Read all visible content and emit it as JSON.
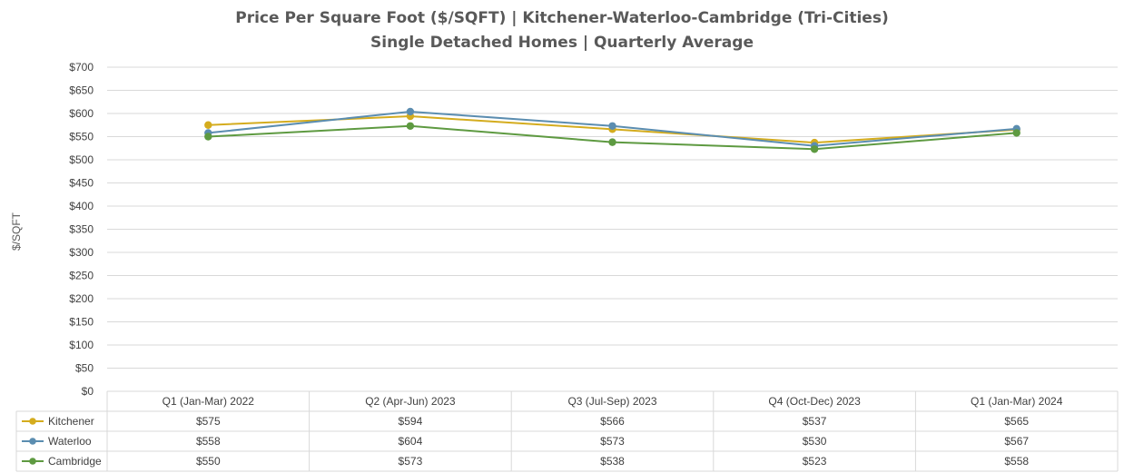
{
  "chart_data": {
    "type": "line",
    "title": "Price Per Square Foot ($/SQFT) | Kitchener-Waterloo-Cambridge (Tri-Cities)",
    "subtitle": "Single Detached Homes | Quarterly Average",
    "ylabel": "$/SQFT",
    "xlabel": "",
    "ylim": [
      0,
      700
    ],
    "ytick_step": 50,
    "ytick_labels": [
      "$0",
      "$50",
      "$100",
      "$150",
      "$200",
      "$250",
      "$300",
      "$350",
      "$400",
      "$450",
      "$500",
      "$550",
      "$600",
      "$650",
      "$700"
    ],
    "grid": true,
    "legend": "data-table",
    "categories": [
      "Q1 (Jan-Mar) 2022",
      "Q2 (Apr-Jun) 2023",
      "Q3 (Jul-Sep) 2023",
      "Q4 (Oct-Dec) 2023",
      "Q1 (Jan-Mar) 2024"
    ],
    "series": [
      {
        "name": "Kitchener",
        "color": "#D4AC1E",
        "values": [
          575,
          594,
          566,
          537,
          565
        ],
        "labels": [
          "$575",
          "$594",
          "$566",
          "$537",
          "$565"
        ]
      },
      {
        "name": "Waterloo",
        "color": "#5B8DB0",
        "values": [
          558,
          604,
          573,
          530,
          567
        ],
        "labels": [
          "$558",
          "$604",
          "$573",
          "$530",
          "$567"
        ]
      },
      {
        "name": "Cambridge",
        "color": "#5E9A41",
        "values": [
          550,
          573,
          538,
          523,
          558
        ],
        "labels": [
          "$550",
          "$573",
          "$538",
          "$523",
          "$558"
        ]
      }
    ]
  }
}
